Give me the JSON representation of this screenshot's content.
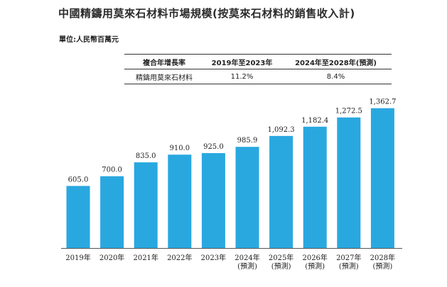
{
  "title": "中國精鑄用莫來石材料市場規模(按莫來石材料的銷售收入計)",
  "unit_label": "單位:人民幣百萬元",
  "cagr_table": {
    "headers": [
      "複合年增長率",
      "2019年至2023年",
      "2024年至2028年(預測)"
    ],
    "row": [
      "精鑄用莫來石材料",
      "11.2%",
      "8.4%"
    ]
  },
  "chart_data": {
    "type": "bar",
    "title": "中國精鑄用莫來石材料市場規模(按莫來石材料的銷售收入計)",
    "ylabel": "",
    "xlabel": "",
    "ylim": [
      0,
      1500
    ],
    "categories": [
      [
        "2019年"
      ],
      [
        "2020年"
      ],
      [
        "2021年"
      ],
      [
        "2022年"
      ],
      [
        "2023年"
      ],
      [
        "2024年",
        "(預測)"
      ],
      [
        "2025年",
        "(預測)"
      ],
      [
        "2026年",
        "(預測)"
      ],
      [
        "2027年",
        "(預測)"
      ],
      [
        "2028年",
        "(預測)"
      ]
    ],
    "values": [
      605.0,
      700.0,
      835.0,
      910.0,
      925.0,
      985.9,
      1092.3,
      1182.4,
      1272.5,
      1362.7
    ],
    "data_labels": [
      "605.0",
      "700.0",
      "835.0",
      "910.0",
      "925.0",
      "985.9",
      "1,092.3",
      "1,182.4",
      "1,272.5",
      "1,362.7"
    ],
    "bar_color": "#29a8e0",
    "axis_color": "#555555"
  }
}
